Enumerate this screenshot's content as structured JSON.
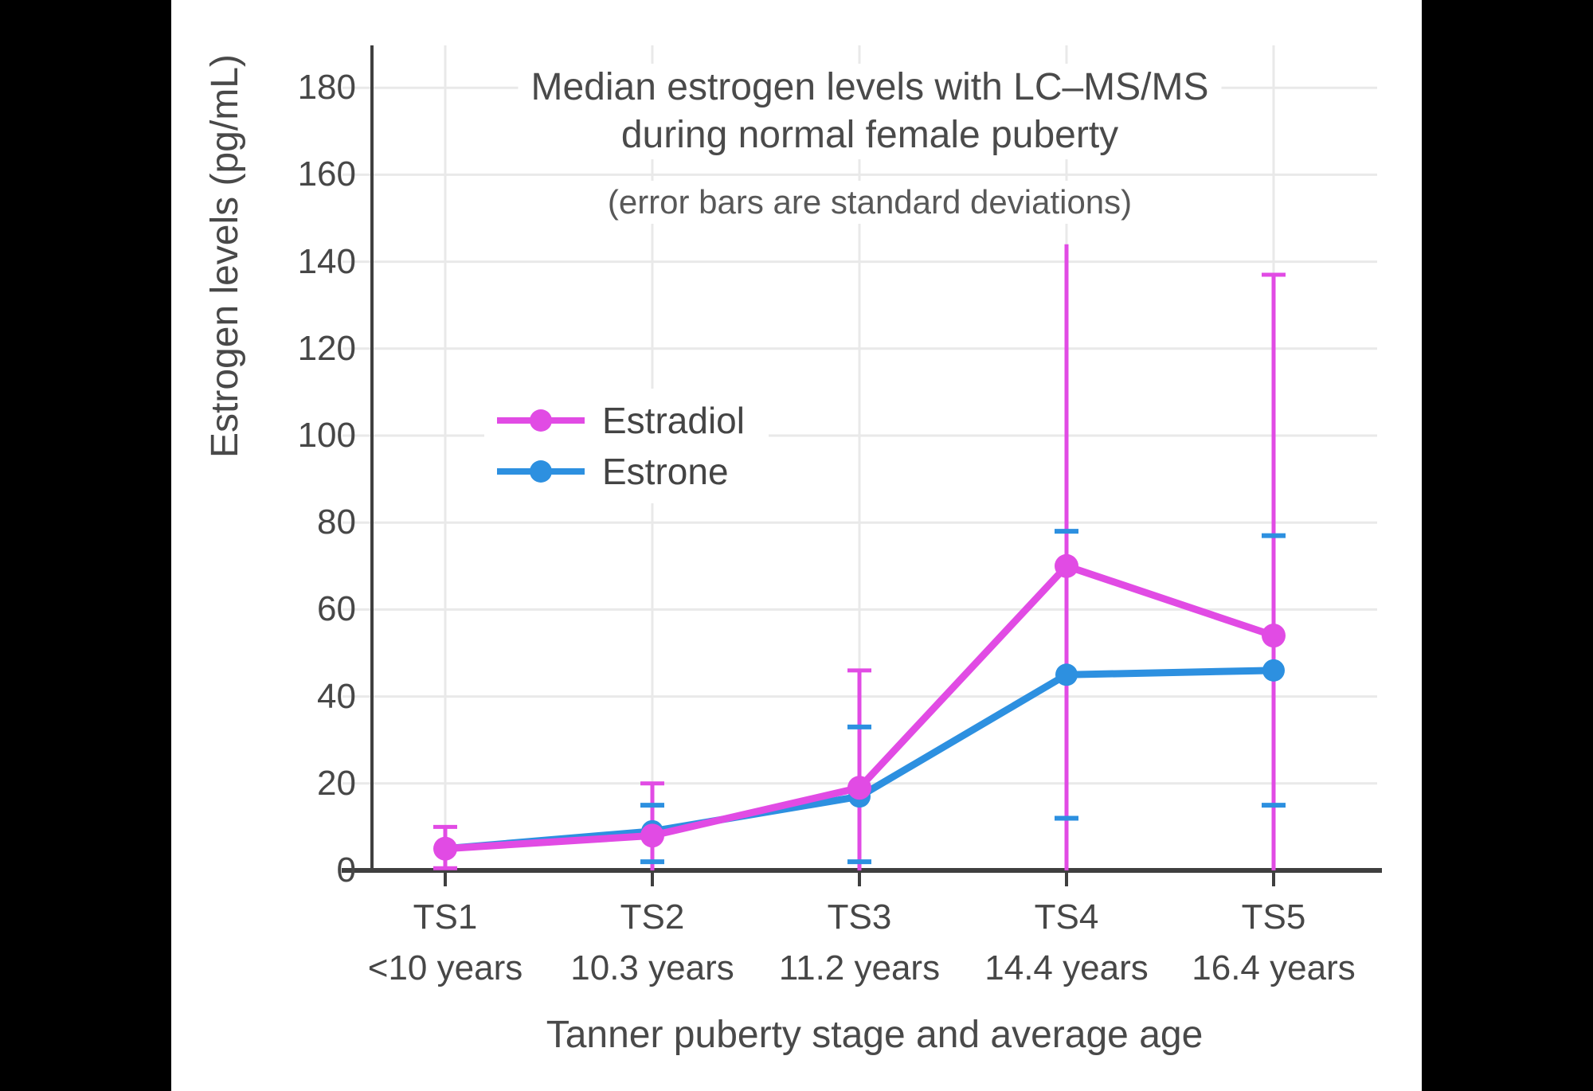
{
  "chart_data": {
    "type": "line",
    "title_line1": "Median estrogen levels with LC–MS/MS",
    "title_line2": "during normal female puberty",
    "subtitle": "(error bars are standard deviations)",
    "xlabel": "Tanner puberty stage and average age",
    "ylabel": "Estrogen levels (pg/mL)",
    "ylim": [
      0,
      190
    ],
    "ytick_step": 20,
    "yticks": [
      0,
      20,
      40,
      60,
      80,
      100,
      120,
      140,
      160,
      180
    ],
    "grid": true,
    "legend_position": "inside-left-middle",
    "categories": [
      "TS1",
      "TS2",
      "TS3",
      "TS4",
      "TS5"
    ],
    "category_ages": [
      "<10 years",
      "10.3 years",
      "11.2 years",
      "14.4 years",
      "16.4 years"
    ],
    "series": [
      {
        "name": "Estradiol",
        "color": "#E14BE4",
        "values": [
          5,
          8,
          19,
          70,
          54
        ],
        "err_low": [
          0.5,
          0,
          0,
          0,
          0
        ],
        "err_high": [
          10,
          20,
          46,
          144,
          137
        ],
        "cap_low": [
          true,
          false,
          false,
          false,
          false
        ],
        "cap_high": [
          true,
          true,
          true,
          false,
          true
        ],
        "error_style": "line-with-caps"
      },
      {
        "name": "Estrone",
        "color": "#2D90E0",
        "values": [
          5,
          9,
          17,
          45,
          46
        ],
        "err_low": [
          null,
          2,
          2,
          12,
          15
        ],
        "err_high": [
          null,
          15,
          33,
          78,
          77
        ],
        "error_style": "caps-only"
      }
    ],
    "colors": {
      "grid": "#E9E9E9",
      "axis": "#3F3F3F",
      "tick_text": "#474747",
      "title_text": "#4A4A4A",
      "subtitle_text": "#585858",
      "background": "#FFFFFF",
      "side_bars": "#000000"
    }
  }
}
